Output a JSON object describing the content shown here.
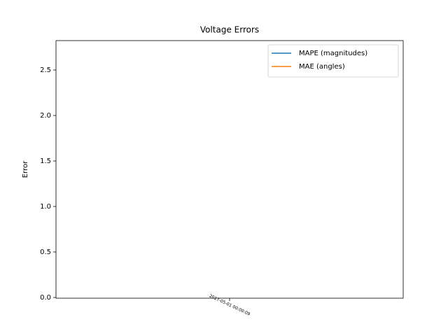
{
  "chart_data": {
    "type": "line",
    "title": "Voltage Errors",
    "ylabel": "Error",
    "x": [
      "2017-05-01 00:00:09"
    ],
    "series": [
      {
        "name": "MAPE (magnitudes)",
        "color": "#1f77b4",
        "values": [
          null
        ]
      },
      {
        "name": "MAE (angles)",
        "color": "#ff7f0e",
        "values": [
          null
        ]
      }
    ],
    "ylim": [
      -0.008,
      2.823
    ],
    "yticks": [
      {
        "value": 0,
        "label": "0.0"
      },
      0.5,
      {
        "value": 1,
        "label": "1.0"
      },
      1.5,
      {
        "value": 2,
        "label": "2.0"
      },
      2.5
    ],
    "legend": "upper right"
  }
}
